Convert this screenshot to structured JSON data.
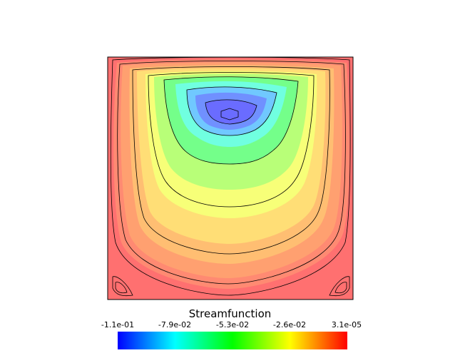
{
  "chart_data": {
    "type": "heatmap",
    "title": "",
    "xlabel": "",
    "ylabel": "",
    "colorbar": {
      "title": "Streamfunction",
      "range": [
        -0.11,
        3.1e-05
      ],
      "tick_labels": [
        "-1.1e-01",
        "-7.9e-02",
        "-5.3e-02",
        "-2.6e-02",
        "3.1e-05"
      ],
      "colormap": [
        "#0000ff",
        "#00ffff",
        "#00ff00",
        "#ffff00",
        "#ff0000"
      ]
    },
    "field": {
      "minimum_value": -0.11,
      "maximum_value": 3.1e-05,
      "contour_lines": 9,
      "legend_location": "bottom-center"
    }
  }
}
